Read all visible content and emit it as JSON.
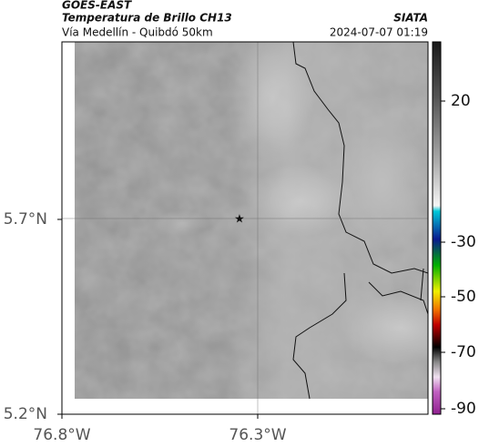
{
  "header": {
    "satellite": "GOES-EAST",
    "product": "Temperatura de Brillo CH13",
    "route": "Vía Medellín - Quibdó 50km",
    "source": "SIATA",
    "datetime": "2024-07-07 01:19"
  },
  "map": {
    "lat_labels": [
      "5.7°N",
      "5.2°N"
    ],
    "lon_labels": [
      "76.8°W",
      "76.3°W"
    ]
  },
  "colorbar": {
    "labels": [
      "20",
      "-30",
      "-50",
      "-70",
      "-90"
    ]
  }
}
